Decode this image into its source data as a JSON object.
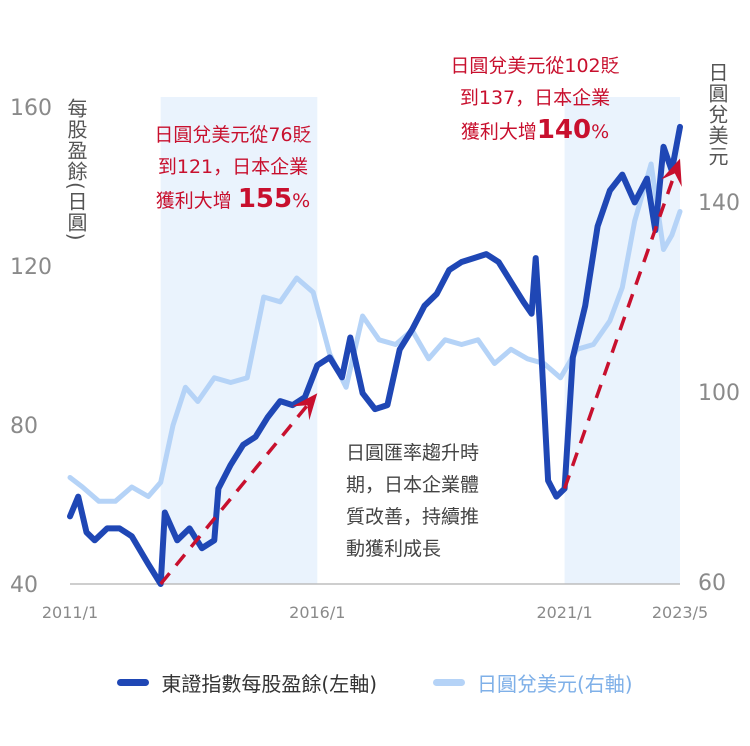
{
  "chart_data": {
    "type": "line",
    "x_axis": {
      "ticks": [
        "2011/1",
        "2016/1",
        "2021/1",
        "2023/5"
      ],
      "range": [
        "2011/1",
        "2023/5"
      ]
    },
    "y_left": {
      "label": "每股盈餘(日圓)",
      "ticks": [
        "160",
        "120",
        "80",
        "40"
      ],
      "range": [
        40,
        160
      ]
    },
    "y_right": {
      "label": "日圓兌美元",
      "ticks": [
        "140",
        "100",
        "60"
      ],
      "range": [
        60,
        140
      ]
    },
    "shaded_periods": [
      [
        "2012/11",
        "2016/1"
      ],
      [
        "2021/1",
        "2023/5"
      ]
    ],
    "series": [
      {
        "name": "東證指數每股盈餘(左軸)",
        "axis": "left",
        "color": "#1f47b5",
        "points": [
          [
            "2011/1",
            57
          ],
          [
            "2011/3",
            62
          ],
          [
            "2011/5",
            53
          ],
          [
            "2011/7",
            51
          ],
          [
            "2011/10",
            54
          ],
          [
            "2012/1",
            54
          ],
          [
            "2012/4",
            52
          ],
          [
            "2012/8",
            45
          ],
          [
            "2012/11",
            40
          ],
          [
            "2012/12",
            58
          ],
          [
            "2013/3",
            51
          ],
          [
            "2013/6",
            54
          ],
          [
            "2013/9",
            49
          ],
          [
            "2013/12",
            51
          ],
          [
            "2014/1",
            64
          ],
          [
            "2014/4",
            70
          ],
          [
            "2014/7",
            75
          ],
          [
            "2014/10",
            77
          ],
          [
            "2015/1",
            82
          ],
          [
            "2015/4",
            86
          ],
          [
            "2015/7",
            85
          ],
          [
            "2015/10",
            87
          ],
          [
            "2016/1",
            95
          ],
          [
            "2016/4",
            97
          ],
          [
            "2016/7",
            92
          ],
          [
            "2016/9",
            102
          ],
          [
            "2016/12",
            88
          ],
          [
            "2017/3",
            84
          ],
          [
            "2017/6",
            85
          ],
          [
            "2017/9",
            99
          ],
          [
            "2017/12",
            104
          ],
          [
            "2018/3",
            110
          ],
          [
            "2018/6",
            113
          ],
          [
            "2018/9",
            119
          ],
          [
            "2018/12",
            121
          ],
          [
            "2019/3",
            122
          ],
          [
            "2019/6",
            123
          ],
          [
            "2019/9",
            121
          ],
          [
            "2019/12",
            116
          ],
          [
            "2020/3",
            111
          ],
          [
            "2020/5",
            108
          ],
          [
            "2020/6",
            122
          ],
          [
            "2020/7",
            105
          ],
          [
            "2020/9",
            66
          ],
          [
            "2020/11",
            62
          ],
          [
            "2021/1",
            64
          ],
          [
            "2021/3",
            97
          ],
          [
            "2021/6",
            110
          ],
          [
            "2021/9",
            130
          ],
          [
            "2021/12",
            139
          ],
          [
            "2022/3",
            143
          ],
          [
            "2022/6",
            136
          ],
          [
            "2022/9",
            142
          ],
          [
            "2022/11",
            129
          ],
          [
            "2023/1",
            150
          ],
          [
            "2023/3",
            144
          ],
          [
            "2023/5",
            155
          ]
        ]
      },
      {
        "name": "日圓兌美元(右軸)",
        "axis": "right",
        "color": "#b5d3f7",
        "points": [
          [
            "2011/1",
            82
          ],
          [
            "2011/4",
            80
          ],
          [
            "2011/8",
            77
          ],
          [
            "2011/12",
            77
          ],
          [
            "2012/4",
            80
          ],
          [
            "2012/8",
            78
          ],
          [
            "2012/11",
            81
          ],
          [
            "2013/2",
            93
          ],
          [
            "2013/5",
            101
          ],
          [
            "2013/8",
            98
          ],
          [
            "2013/12",
            103
          ],
          [
            "2014/4",
            102
          ],
          [
            "2014/8",
            103
          ],
          [
            "2014/12",
            120
          ],
          [
            "2015/4",
            119
          ],
          [
            "2015/8",
            124
          ],
          [
            "2015/12",
            121
          ],
          [
            "2016/4",
            108
          ],
          [
            "2016/8",
            101
          ],
          [
            "2016/12",
            116
          ],
          [
            "2017/4",
            111
          ],
          [
            "2017/8",
            110
          ],
          [
            "2017/12",
            113
          ],
          [
            "2018/4",
            107
          ],
          [
            "2018/8",
            111
          ],
          [
            "2018/12",
            110
          ],
          [
            "2019/4",
            111
          ],
          [
            "2019/8",
            106
          ],
          [
            "2019/12",
            109
          ],
          [
            "2020/4",
            107
          ],
          [
            "2020/8",
            106
          ],
          [
            "2020/12",
            103
          ],
          [
            "2021/4",
            109
          ],
          [
            "2021/8",
            110
          ],
          [
            "2021/12",
            115
          ],
          [
            "2022/3",
            122
          ],
          [
            "2022/6",
            136
          ],
          [
            "2022/10",
            148
          ],
          [
            "2023/1",
            130
          ],
          [
            "2023/3",
            133
          ],
          [
            "2023/5",
            138
          ]
        ]
      }
    ],
    "annotations": [
      {
        "lines": [
          "日圓兌美元從76貶",
          "到121，日本企業"
        ],
        "lead": "獲利大增 ",
        "value": "155",
        "unit": "%"
      },
      {
        "lines": [
          "日圓兌美元從102貶",
          "到137，日本企業"
        ],
        "lead": "獲利大增",
        "value": "140",
        "unit": "%"
      },
      {
        "lines": [
          "日圓匯率趨升時",
          "期，日本企業體",
          "質改善，持續推",
          "動獲利成長"
        ]
      }
    ],
    "trend_arrows": [
      {
        "from": [
          "2012/11",
          40
        ],
        "to": [
          "2016/1",
          88
        ]
      },
      {
        "from": [
          "2021/1",
          64
        ],
        "to": [
          "2023/5",
          147
        ]
      }
    ]
  }
}
